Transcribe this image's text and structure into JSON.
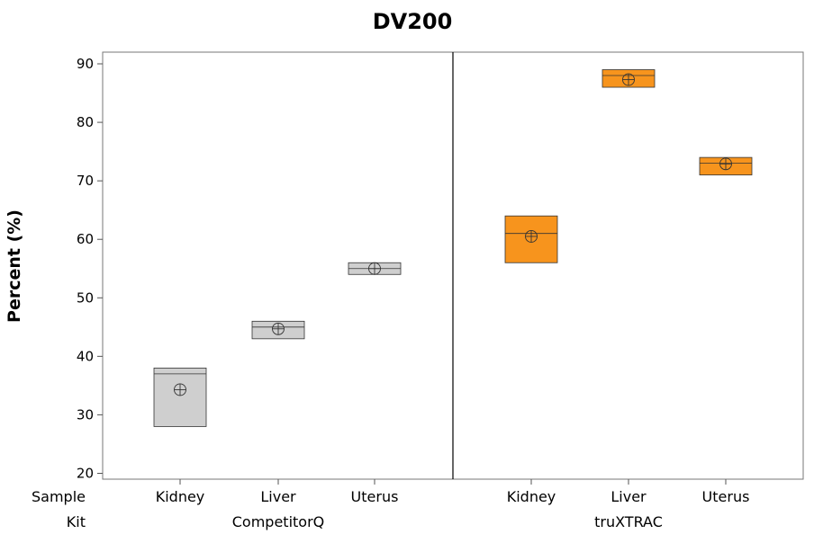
{
  "chart_data": {
    "type": "box",
    "title": "DV200",
    "ylabel": "Percent (%)",
    "xlabel": "",
    "ylim": [
      19,
      92
    ],
    "yticks": [
      20,
      30,
      40,
      50,
      60,
      70,
      80,
      90
    ],
    "grid": false,
    "legend": "none",
    "row_labels": {
      "inner": "Sample",
      "outer": "Kit"
    },
    "groups": [
      {
        "name": "CompetitorQ",
        "color": "#cfcfcf",
        "categories": [
          "Kidney",
          "Liver",
          "Uterus"
        ],
        "boxes": [
          {
            "category": "Kidney",
            "q1": 28,
            "median": 37,
            "q3": 38,
            "mean": 34.3
          },
          {
            "category": "Liver",
            "q1": 43,
            "median": 45,
            "q3": 46,
            "mean": 44.7
          },
          {
            "category": "Uterus",
            "q1": 54,
            "median": 55,
            "q3": 56,
            "mean": 55.0
          }
        ]
      },
      {
        "name": "truXTRAC",
        "color": "#f7941d",
        "categories": [
          "Kidney",
          "Liver",
          "Uterus"
        ],
        "boxes": [
          {
            "category": "Kidney",
            "q1": 56,
            "median": 61,
            "q3": 64,
            "mean": 60.5
          },
          {
            "category": "Liver",
            "q1": 86,
            "median": 88,
            "q3": 89,
            "mean": 87.3
          },
          {
            "category": "Uterus",
            "q1": 71,
            "median": 73,
            "q3": 74,
            "mean": 72.9
          }
        ]
      }
    ]
  }
}
